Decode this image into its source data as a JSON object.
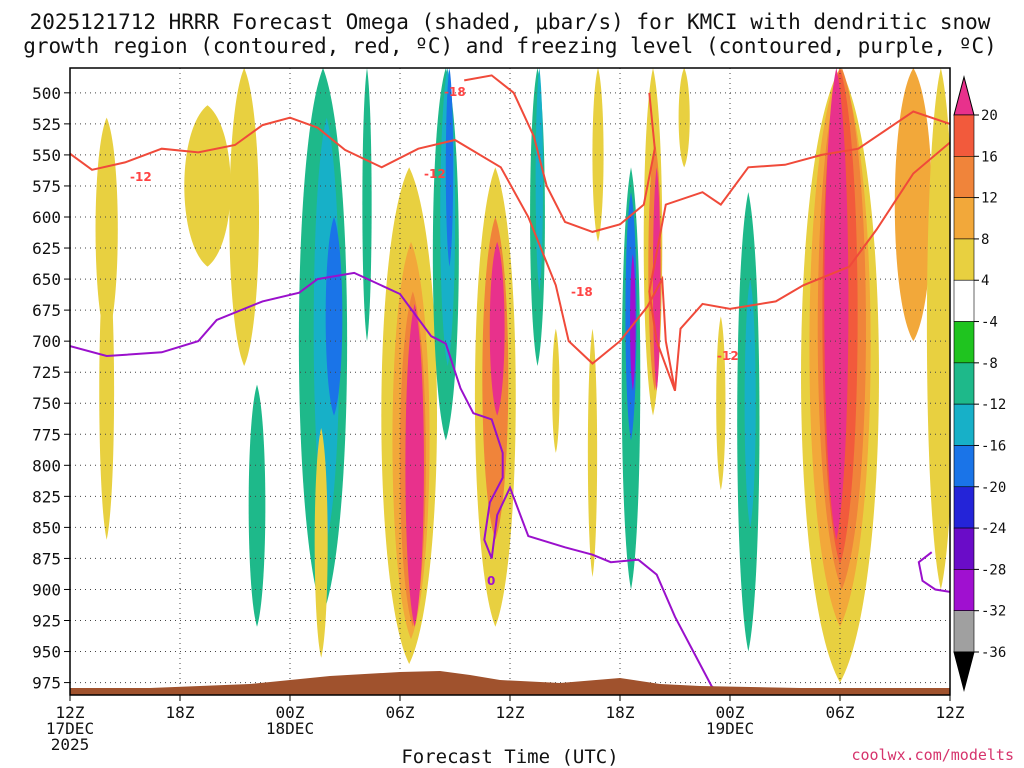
{
  "chart_data": {
    "type": "contour",
    "title_line1": "2025121712 HRRR Forecast Omega (shaded, μbar/s) for KMCI with dendritic snow",
    "title_line2": "growth region (contoured, red, ºC) and freezing level (contoured, purple, ºC)",
    "xlabel": "Forecast Time (UTC)",
    "credit": "coolwx.com/modelts",
    "x_range_hours": [
      0,
      48
    ],
    "y_range_mb": [
      480,
      985
    ],
    "y_ticks": [
      500,
      525,
      550,
      575,
      600,
      625,
      650,
      675,
      700,
      725,
      750,
      775,
      800,
      825,
      850,
      875,
      900,
      925,
      950,
      975
    ],
    "x_ticks": [
      {
        "h": 0,
        "lines": [
          "12Z",
          "17DEC",
          "2025"
        ]
      },
      {
        "h": 6,
        "lines": [
          "18Z"
        ]
      },
      {
        "h": 12,
        "lines": [
          "00Z",
          "18DEC"
        ]
      },
      {
        "h": 18,
        "lines": [
          "06Z"
        ]
      },
      {
        "h": 24,
        "lines": [
          "12Z"
        ]
      },
      {
        "h": 30,
        "lines": [
          "18Z"
        ]
      },
      {
        "h": 36,
        "lines": [
          "00Z",
          "19DEC"
        ]
      },
      {
        "h": 42,
        "lines": [
          "06Z"
        ]
      },
      {
        "h": 48,
        "lines": [
          "12Z"
        ]
      }
    ],
    "colorbar": {
      "labels": [
        "20",
        "16",
        "12",
        "8",
        "4",
        "-4",
        "-8",
        "-12",
        "-16",
        "-20",
        "-24",
        "-28",
        "-32",
        "-36"
      ],
      "colors": [
        "#e8318c",
        "#f25a3c",
        "#f0843a",
        "#f2a83a",
        "#e8d040",
        "#ffffff",
        "#1fc41f",
        "#1eb98a",
        "#17b0c8",
        "#1a74e8",
        "#2424d8",
        "#6a0cc8",
        "#a010d0",
        "#a0a0a0",
        "#000000"
      ]
    },
    "omega_cells": [
      {
        "h": 2.0,
        "p": [
          520,
          700
        ],
        "w": 1.2,
        "v": 5
      },
      {
        "h": 7.5,
        "p": [
          510,
          640
        ],
        "w": 2.5,
        "v": 5
      },
      {
        "h": 2.0,
        "p": [
          620,
          860
        ],
        "w": 0.8,
        "v": 5
      },
      {
        "h": 9.5,
        "p": [
          480,
          720
        ],
        "w": 1.6,
        "v": 5
      },
      {
        "h": 10.2,
        "p": [
          735,
          930
        ],
        "w": 0.9,
        "v": -8
      },
      {
        "h": 13.8,
        "p": [
          480,
          920
        ],
        "w": 2.6,
        "v": -8
      },
      {
        "h": 14.0,
        "p": [
          520,
          860
        ],
        "w": 1.4,
        "v": -12
      },
      {
        "h": 14.4,
        "p": [
          600,
          760
        ],
        "w": 0.9,
        "v": -16
      },
      {
        "h": 13.7,
        "p": [
          770,
          955
        ],
        "w": 0.7,
        "v": 5
      },
      {
        "h": 18.5,
        "p": [
          560,
          960
        ],
        "w": 3.0,
        "v": 5
      },
      {
        "h": 18.6,
        "p": [
          620,
          940
        ],
        "w": 2.0,
        "v": 10
      },
      {
        "h": 18.7,
        "p": [
          660,
          930
        ],
        "w": 1.4,
        "v": 14
      },
      {
        "h": 18.8,
        "p": [
          670,
          930
        ],
        "w": 1.0,
        "v": 22
      },
      {
        "h": 16.2,
        "p": [
          480,
          700
        ],
        "w": 0.5,
        "v": -8
      },
      {
        "h": 20.5,
        "p": [
          480,
          780
        ],
        "w": 1.4,
        "v": -8
      },
      {
        "h": 20.6,
        "p": [
          480,
          720
        ],
        "w": 0.8,
        "v": -12
      },
      {
        "h": 20.7,
        "p": [
          480,
          640
        ],
        "w": 0.4,
        "v": -16
      },
      {
        "h": 23.2,
        "p": [
          560,
          930
        ],
        "w": 2.2,
        "v": 5
      },
      {
        "h": 23.2,
        "p": [
          600,
          860
        ],
        "w": 1.4,
        "v": 12
      },
      {
        "h": 23.3,
        "p": [
          620,
          760
        ],
        "w": 0.8,
        "v": 22
      },
      {
        "h": 25.5,
        "p": [
          480,
          720
        ],
        "w": 0.8,
        "v": -8
      },
      {
        "h": 25.6,
        "p": [
          480,
          660
        ],
        "w": 0.4,
        "v": -12
      },
      {
        "h": 26.5,
        "p": [
          690,
          790
        ],
        "w": 0.4,
        "v": 5
      },
      {
        "h": 28.8,
        "p": [
          480,
          620
        ],
        "w": 0.6,
        "v": 5
      },
      {
        "h": 28.5,
        "p": [
          690,
          890
        ],
        "w": 0.5,
        "v": 5
      },
      {
        "h": 30.6,
        "p": [
          560,
          900
        ],
        "w": 1.0,
        "v": -8
      },
      {
        "h": 30.6,
        "p": [
          580,
          780
        ],
        "w": 0.6,
        "v": -16
      },
      {
        "h": 30.7,
        "p": [
          630,
          740
        ],
        "w": 0.3,
        "v": -28
      },
      {
        "h": 31.8,
        "p": [
          480,
          760
        ],
        "w": 1.0,
        "v": 5
      },
      {
        "h": 31.9,
        "p": [
          540,
          740
        ],
        "w": 0.7,
        "v": 14
      },
      {
        "h": 32.0,
        "p": [
          560,
          740
        ],
        "w": 0.4,
        "v": 22
      },
      {
        "h": 33.5,
        "p": [
          480,
          560
        ],
        "w": 0.6,
        "v": 5
      },
      {
        "h": 37.0,
        "p": [
          580,
          950
        ],
        "w": 1.2,
        "v": -8
      },
      {
        "h": 37.1,
        "p": [
          650,
          850
        ],
        "w": 0.6,
        "v": -12
      },
      {
        "h": 35.5,
        "p": [
          680,
          820
        ],
        "w": 0.5,
        "v": 5
      },
      {
        "h": 42.0,
        "p": [
          480,
          975
        ],
        "w": 4.2,
        "v": 5
      },
      {
        "h": 42.0,
        "p": [
          480,
          930
        ],
        "w": 3.3,
        "v": 10
      },
      {
        "h": 42.1,
        "p": [
          480,
          900
        ],
        "w": 2.6,
        "v": 14
      },
      {
        "h": 42.0,
        "p": [
          480,
          880
        ],
        "w": 1.9,
        "v": 18
      },
      {
        "h": 41.8,
        "p": [
          480,
          860
        ],
        "w": 1.3,
        "v": 22
      },
      {
        "h": 46.0,
        "p": [
          480,
          700
        ],
        "w": 2.0,
        "v": 10
      },
      {
        "h": 47.5,
        "p": [
          480,
          900
        ],
        "w": 1.5,
        "v": 5
      }
    ],
    "dgz_lines": [
      {
        "name": "-12",
        "points": [
          [
            0,
            549
          ],
          [
            1.2,
            562
          ],
          [
            3,
            556
          ],
          [
            5,
            545
          ],
          [
            7,
            548
          ],
          [
            9,
            542
          ],
          [
            10.5,
            526
          ],
          [
            12,
            520
          ],
          [
            13.5,
            528
          ],
          [
            15,
            546
          ],
          [
            17,
            560
          ],
          [
            19,
            545
          ],
          [
            21,
            538
          ],
          [
            23.5,
            560
          ],
          [
            25,
            600
          ],
          [
            26.5,
            655
          ],
          [
            27.2,
            700
          ],
          [
            28.5,
            718
          ],
          [
            30,
            700
          ],
          [
            31.5,
            672
          ],
          [
            32.3,
            650
          ],
          [
            32.5,
            700
          ],
          [
            33,
            740
          ],
          [
            32,
            700
          ],
          [
            31.6,
            660
          ],
          [
            32.5,
            590
          ],
          [
            34.5,
            580
          ],
          [
            35.5,
            590
          ],
          [
            37,
            560
          ],
          [
            39,
            558
          ],
          [
            41,
            550
          ],
          [
            43,
            545
          ],
          [
            46,
            515
          ],
          [
            48,
            525
          ]
        ]
      },
      {
        "name": "-12b",
        "points": [
          [
            33,
            740
          ],
          [
            33.3,
            690
          ],
          [
            34.5,
            670
          ],
          [
            36,
            674
          ],
          [
            38.5,
            668
          ],
          [
            40,
            655
          ],
          [
            42.5,
            640
          ],
          [
            44,
            610
          ],
          [
            46,
            565
          ],
          [
            48,
            540
          ]
        ]
      },
      {
        "name": "-18",
        "points": [
          [
            21.5,
            490
          ],
          [
            23,
            486
          ],
          [
            24.2,
            500
          ],
          [
            25.3,
            535
          ],
          [
            26,
            575
          ],
          [
            27,
            604
          ],
          [
            28.5,
            612
          ],
          [
            30,
            606
          ],
          [
            31.3,
            590
          ],
          [
            31.9,
            545
          ],
          [
            31.6,
            500
          ]
        ]
      }
    ],
    "freeze_line": [
      [
        0,
        704
      ],
      [
        2,
        712
      ],
      [
        5,
        709
      ],
      [
        7,
        700
      ],
      [
        8,
        683
      ],
      [
        10.5,
        668
      ],
      [
        12.5,
        661
      ],
      [
        13.5,
        650
      ],
      [
        15.5,
        645
      ],
      [
        18,
        662
      ],
      [
        19.7,
        696
      ],
      [
        20.5,
        702
      ],
      [
        21.3,
        738
      ],
      [
        22,
        758
      ],
      [
        23,
        763
      ],
      [
        23.6,
        790
      ],
      [
        23.6,
        810
      ],
      [
        22.9,
        830
      ],
      [
        22.6,
        860
      ],
      [
        23,
        875
      ],
      [
        23.3,
        840
      ],
      [
        24,
        818
      ],
      [
        25,
        857
      ],
      [
        27,
        866
      ],
      [
        28.5,
        872
      ],
      [
        29.5,
        878
      ],
      [
        31,
        876
      ],
      [
        32,
        888
      ],
      [
        33,
        922
      ],
      [
        34,
        950
      ],
      [
        35,
        978
      ],
      [
        36,
        990
      ]
    ],
    "freeze_line_b": [
      [
        47,
        870
      ],
      [
        46.3,
        878
      ],
      [
        46.5,
        893
      ],
      [
        47.2,
        900
      ],
      [
        48,
        902
      ]
    ],
    "contour_label_texts": {
      "dgz_a": "-12",
      "dgz_b": "-12",
      "dgz_c": "-12",
      "dgz_d": "-18",
      "dgz_e": "-18",
      "freeze": "0"
    }
  }
}
